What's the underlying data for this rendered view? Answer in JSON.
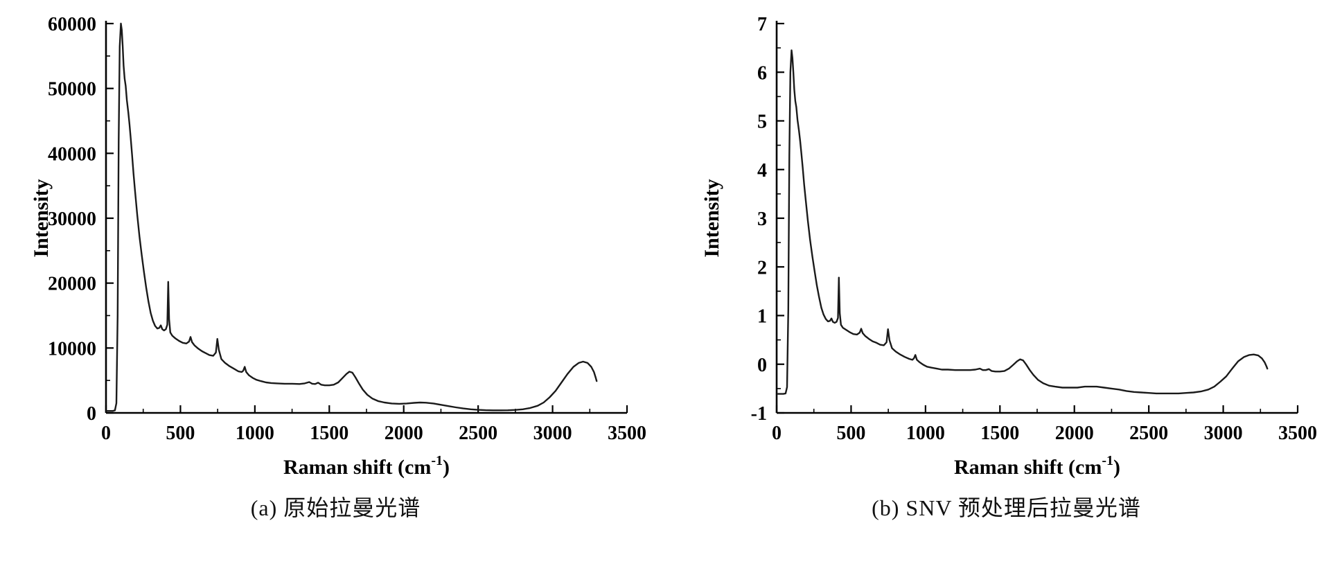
{
  "figure": {
    "background_color": "#ffffff",
    "line_color": "#1a1a1a"
  },
  "chart_data": [
    {
      "type": "line",
      "caption": "(a) 原始拉曼光谱",
      "xlabel": {
        "text": "Raman shift (cm",
        "sup": "-1",
        "after": ")"
      },
      "ylabel": "Intensity",
      "xlim": [
        0,
        3500
      ],
      "ylim": [
        0,
        60000
      ],
      "xticks": [
        0,
        500,
        1000,
        1500,
        2000,
        2500,
        3000,
        3500
      ],
      "yticks": [
        0,
        10000,
        20000,
        30000,
        40000,
        50000,
        60000
      ],
      "x_minor_step": 250,
      "y_minor_step": 5000,
      "grid": false,
      "legend": "none",
      "line_color": "#1a1a1a",
      "points": [
        [
          0,
          300
        ],
        [
          45,
          300
        ],
        [
          60,
          400
        ],
        [
          70,
          1500
        ],
        [
          78,
          15000
        ],
        [
          85,
          42000
        ],
        [
          92,
          56500
        ],
        [
          100,
          60000
        ],
        [
          106,
          59000
        ],
        [
          112,
          56500
        ],
        [
          118,
          53500
        ],
        [
          125,
          51500
        ],
        [
          132,
          50400
        ],
        [
          140,
          48200
        ],
        [
          150,
          46300
        ],
        [
          158,
          44500
        ],
        [
          166,
          42300
        ],
        [
          175,
          39800
        ],
        [
          185,
          36900
        ],
        [
          195,
          34200
        ],
        [
          210,
          30500
        ],
        [
          225,
          27200
        ],
        [
          240,
          24300
        ],
        [
          255,
          21700
        ],
        [
          270,
          19300
        ],
        [
          285,
          17200
        ],
        [
          300,
          15400
        ],
        [
          315,
          14200
        ],
        [
          330,
          13400
        ],
        [
          345,
          13000
        ],
        [
          358,
          13100
        ],
        [
          368,
          13500
        ],
        [
          378,
          12900
        ],
        [
          390,
          12700
        ],
        [
          402,
          12900
        ],
        [
          412,
          13600
        ],
        [
          418,
          20200
        ],
        [
          424,
          14400
        ],
        [
          432,
          12400
        ],
        [
          445,
          11900
        ],
        [
          465,
          11500
        ],
        [
          490,
          11100
        ],
        [
          515,
          10800
        ],
        [
          540,
          10700
        ],
        [
          558,
          11000
        ],
        [
          568,
          11700
        ],
        [
          578,
          10900
        ],
        [
          595,
          10400
        ],
        [
          620,
          9900
        ],
        [
          645,
          9500
        ],
        [
          670,
          9200
        ],
        [
          695,
          8900
        ],
        [
          720,
          8800
        ],
        [
          738,
          9300
        ],
        [
          748,
          11400
        ],
        [
          758,
          9700
        ],
        [
          775,
          8300
        ],
        [
          800,
          7700
        ],
        [
          830,
          7200
        ],
        [
          860,
          6800
        ],
        [
          890,
          6400
        ],
        [
          912,
          6300
        ],
        [
          922,
          6500
        ],
        [
          932,
          7100
        ],
        [
          942,
          6300
        ],
        [
          960,
          5800
        ],
        [
          985,
          5400
        ],
        [
          1010,
          5100
        ],
        [
          1040,
          4900
        ],
        [
          1075,
          4700
        ],
        [
          1110,
          4600
        ],
        [
          1150,
          4550
        ],
        [
          1200,
          4500
        ],
        [
          1250,
          4500
        ],
        [
          1300,
          4450
        ],
        [
          1335,
          4550
        ],
        [
          1365,
          4750
        ],
        [
          1385,
          4500
        ],
        [
          1405,
          4450
        ],
        [
          1425,
          4650
        ],
        [
          1445,
          4350
        ],
        [
          1470,
          4250
        ],
        [
          1500,
          4250
        ],
        [
          1530,
          4350
        ],
        [
          1560,
          4700
        ],
        [
          1590,
          5400
        ],
        [
          1615,
          6000
        ],
        [
          1635,
          6350
        ],
        [
          1655,
          6200
        ],
        [
          1675,
          5500
        ],
        [
          1700,
          4500
        ],
        [
          1725,
          3600
        ],
        [
          1755,
          2800
        ],
        [
          1790,
          2200
        ],
        [
          1830,
          1800
        ],
        [
          1870,
          1600
        ],
        [
          1920,
          1450
        ],
        [
          1970,
          1400
        ],
        [
          2020,
          1450
        ],
        [
          2070,
          1550
        ],
        [
          2110,
          1600
        ],
        [
          2150,
          1570
        ],
        [
          2200,
          1450
        ],
        [
          2250,
          1250
        ],
        [
          2300,
          1050
        ],
        [
          2350,
          850
        ],
        [
          2400,
          680
        ],
        [
          2450,
          560
        ],
        [
          2500,
          470
        ],
        [
          2550,
          420
        ],
        [
          2600,
          390
        ],
        [
          2650,
          390
        ],
        [
          2700,
          410
        ],
        [
          2750,
          460
        ],
        [
          2800,
          560
        ],
        [
          2850,
          760
        ],
        [
          2900,
          1100
        ],
        [
          2940,
          1600
        ],
        [
          2980,
          2400
        ],
        [
          3020,
          3400
        ],
        [
          3060,
          4700
        ],
        [
          3100,
          6000
        ],
        [
          3140,
          7100
        ],
        [
          3175,
          7700
        ],
        [
          3205,
          7900
        ],
        [
          3235,
          7700
        ],
        [
          3260,
          7100
        ],
        [
          3278,
          6300
        ],
        [
          3290,
          5400
        ],
        [
          3296,
          4900
        ]
      ]
    },
    {
      "type": "line",
      "caption": "(b) SNV 预处理后拉曼光谱",
      "xlabel": {
        "text": "Raman shift (cm",
        "sup": "-1",
        "after": ")"
      },
      "ylabel": "Intensity",
      "xlim": [
        0,
        3500
      ],
      "ylim": [
        -1,
        7
      ],
      "xticks": [
        0,
        500,
        1000,
        1500,
        2000,
        2500,
        3000,
        3500
      ],
      "yticks": [
        -1,
        0,
        1,
        2,
        3,
        4,
        5,
        6,
        7
      ],
      "x_minor_step": 250,
      "y_minor_step": 0.5,
      "grid": false,
      "legend": "none",
      "line_color": "#1a1a1a",
      "points": [
        [
          0,
          -0.61
        ],
        [
          45,
          -0.61
        ],
        [
          60,
          -0.6
        ],
        [
          70,
          -0.47
        ],
        [
          78,
          1.12
        ],
        [
          85,
          4.29
        ],
        [
          92,
          6.0
        ],
        [
          100,
          6.45
        ],
        [
          106,
          6.29
        ],
        [
          112,
          6.0
        ],
        [
          118,
          5.65
        ],
        [
          125,
          5.41
        ],
        [
          132,
          5.28
        ],
        [
          140,
          5.02
        ],
        [
          150,
          4.8
        ],
        [
          158,
          4.59
        ],
        [
          166,
          4.33
        ],
        [
          175,
          4.04
        ],
        [
          185,
          3.69
        ],
        [
          195,
          3.38
        ],
        [
          210,
          2.94
        ],
        [
          225,
          2.55
        ],
        [
          240,
          2.21
        ],
        [
          255,
          1.91
        ],
        [
          270,
          1.62
        ],
        [
          285,
          1.38
        ],
        [
          300,
          1.16
        ],
        [
          315,
          1.02
        ],
        [
          330,
          0.93
        ],
        [
          345,
          0.88
        ],
        [
          358,
          0.89
        ],
        [
          368,
          0.94
        ],
        [
          378,
          0.87
        ],
        [
          390,
          0.85
        ],
        [
          402,
          0.87
        ],
        [
          412,
          0.95
        ],
        [
          418,
          1.78
        ],
        [
          424,
          1.05
        ],
        [
          432,
          0.81
        ],
        [
          445,
          0.75
        ],
        [
          465,
          0.71
        ],
        [
          490,
          0.66
        ],
        [
          515,
          0.62
        ],
        [
          540,
          0.61
        ],
        [
          558,
          0.65
        ],
        [
          568,
          0.73
        ],
        [
          578,
          0.64
        ],
        [
          595,
          0.58
        ],
        [
          620,
          0.52
        ],
        [
          645,
          0.47
        ],
        [
          670,
          0.44
        ],
        [
          695,
          0.4
        ],
        [
          720,
          0.39
        ],
        [
          738,
          0.45
        ],
        [
          748,
          0.72
        ],
        [
          758,
          0.49
        ],
        [
          775,
          0.33
        ],
        [
          800,
          0.26
        ],
        [
          830,
          0.2
        ],
        [
          860,
          0.15
        ],
        [
          890,
          0.11
        ],
        [
          912,
          0.09
        ],
        [
          922,
          0.12
        ],
        [
          932,
          0.19
        ],
        [
          942,
          0.09
        ],
        [
          960,
          0.04
        ],
        [
          985,
          -0.01
        ],
        [
          1010,
          -0.05
        ],
        [
          1040,
          -0.07
        ],
        [
          1075,
          -0.09
        ],
        [
          1110,
          -0.11
        ],
        [
          1150,
          -0.11
        ],
        [
          1200,
          -0.12
        ],
        [
          1250,
          -0.12
        ],
        [
          1300,
          -0.12
        ],
        [
          1335,
          -0.11
        ],
        [
          1365,
          -0.09
        ],
        [
          1385,
          -0.12
        ],
        [
          1405,
          -0.12
        ],
        [
          1425,
          -0.1
        ],
        [
          1445,
          -0.14
        ],
        [
          1470,
          -0.15
        ],
        [
          1500,
          -0.15
        ],
        [
          1530,
          -0.14
        ],
        [
          1560,
          -0.09
        ],
        [
          1590,
          -0.01
        ],
        [
          1615,
          0.06
        ],
        [
          1635,
          0.1
        ],
        [
          1655,
          0.08
        ],
        [
          1675,
          0.0
        ],
        [
          1700,
          -0.12
        ],
        [
          1725,
          -0.22
        ],
        [
          1755,
          -0.32
        ],
        [
          1790,
          -0.39
        ],
        [
          1830,
          -0.44
        ],
        [
          1870,
          -0.46
        ],
        [
          1920,
          -0.48
        ],
        [
          1970,
          -0.48
        ],
        [
          2020,
          -0.48
        ],
        [
          2070,
          -0.46
        ],
        [
          2110,
          -0.46
        ],
        [
          2150,
          -0.46
        ],
        [
          2200,
          -0.48
        ],
        [
          2250,
          -0.5
        ],
        [
          2300,
          -0.52
        ],
        [
          2350,
          -0.55
        ],
        [
          2400,
          -0.57
        ],
        [
          2450,
          -0.58
        ],
        [
          2500,
          -0.59
        ],
        [
          2550,
          -0.6
        ],
        [
          2600,
          -0.6
        ],
        [
          2650,
          -0.6
        ],
        [
          2700,
          -0.6
        ],
        [
          2750,
          -0.59
        ],
        [
          2800,
          -0.58
        ],
        [
          2850,
          -0.56
        ],
        [
          2900,
          -0.52
        ],
        [
          2940,
          -0.46
        ],
        [
          2980,
          -0.36
        ],
        [
          3020,
          -0.25
        ],
        [
          3060,
          -0.09
        ],
        [
          3100,
          0.06
        ],
        [
          3140,
          0.15
        ],
        [
          3175,
          0.19
        ],
        [
          3205,
          0.2
        ],
        [
          3235,
          0.18
        ],
        [
          3260,
          0.12
        ],
        [
          3278,
          0.04
        ],
        [
          3290,
          -0.04
        ],
        [
          3296,
          -0.09
        ]
      ]
    }
  ]
}
